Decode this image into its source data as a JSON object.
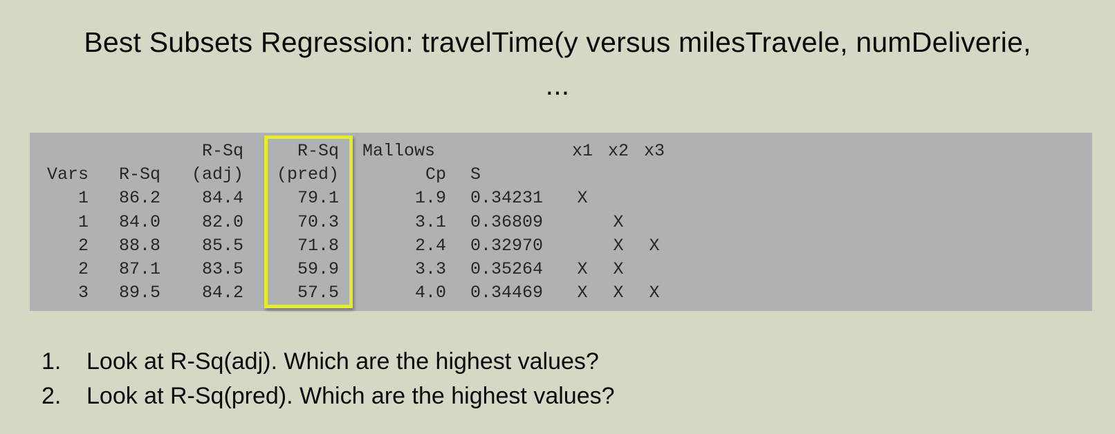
{
  "title": {
    "line1": "Best Subsets Regression: travelTime(y versus milesTravele, numDeliverie,",
    "line2": "..."
  },
  "table": {
    "header_row1": {
      "rsq_adj": "R-Sq",
      "rsq_pred": "R-Sq",
      "mallows": "Mallows",
      "x1": "x1",
      "x2": "x2",
      "x3": "x3"
    },
    "header_row2": {
      "vars": "Vars",
      "rsq": "R-Sq",
      "rsq_adj": "(adj)",
      "rsq_pred": "(pred)",
      "cp": "Cp",
      "s": "S"
    },
    "rows": [
      {
        "vars": "1",
        "rsq": "86.2",
        "rsq_adj": "84.4",
        "rsq_pred": "79.1",
        "cp": "1.9",
        "s": "0.34231",
        "x1": "X",
        "x2": "",
        "x3": ""
      },
      {
        "vars": "1",
        "rsq": "84.0",
        "rsq_adj": "82.0",
        "rsq_pred": "70.3",
        "cp": "3.1",
        "s": "0.36809",
        "x1": "",
        "x2": "X",
        "x3": ""
      },
      {
        "vars": "2",
        "rsq": "88.8",
        "rsq_adj": "85.5",
        "rsq_pred": "71.8",
        "cp": "2.4",
        "s": "0.32970",
        "x1": "",
        "x2": "X",
        "x3": "X"
      },
      {
        "vars": "2",
        "rsq": "87.1",
        "rsq_adj": "83.5",
        "rsq_pred": "59.9",
        "cp": "3.3",
        "s": "0.35264",
        "x1": "X",
        "x2": "X",
        "x3": ""
      },
      {
        "vars": "3",
        "rsq": "89.5",
        "rsq_adj": "84.2",
        "rsq_pred": "57.5",
        "cp": "4.0",
        "s": "0.34469",
        "x1": "X",
        "x2": "X",
        "x3": "X"
      }
    ]
  },
  "questions": [
    {
      "number": "1.",
      "text": "Look at R-Sq(adj). Which are the highest values?"
    },
    {
      "number": "2.",
      "text": "Look at R-Sq(pred). Which are the highest values?"
    }
  ],
  "colors": {
    "background": "#d4d8c4",
    "panel": "#aeb2b4",
    "highlight_border": "#e5ec2e"
  }
}
